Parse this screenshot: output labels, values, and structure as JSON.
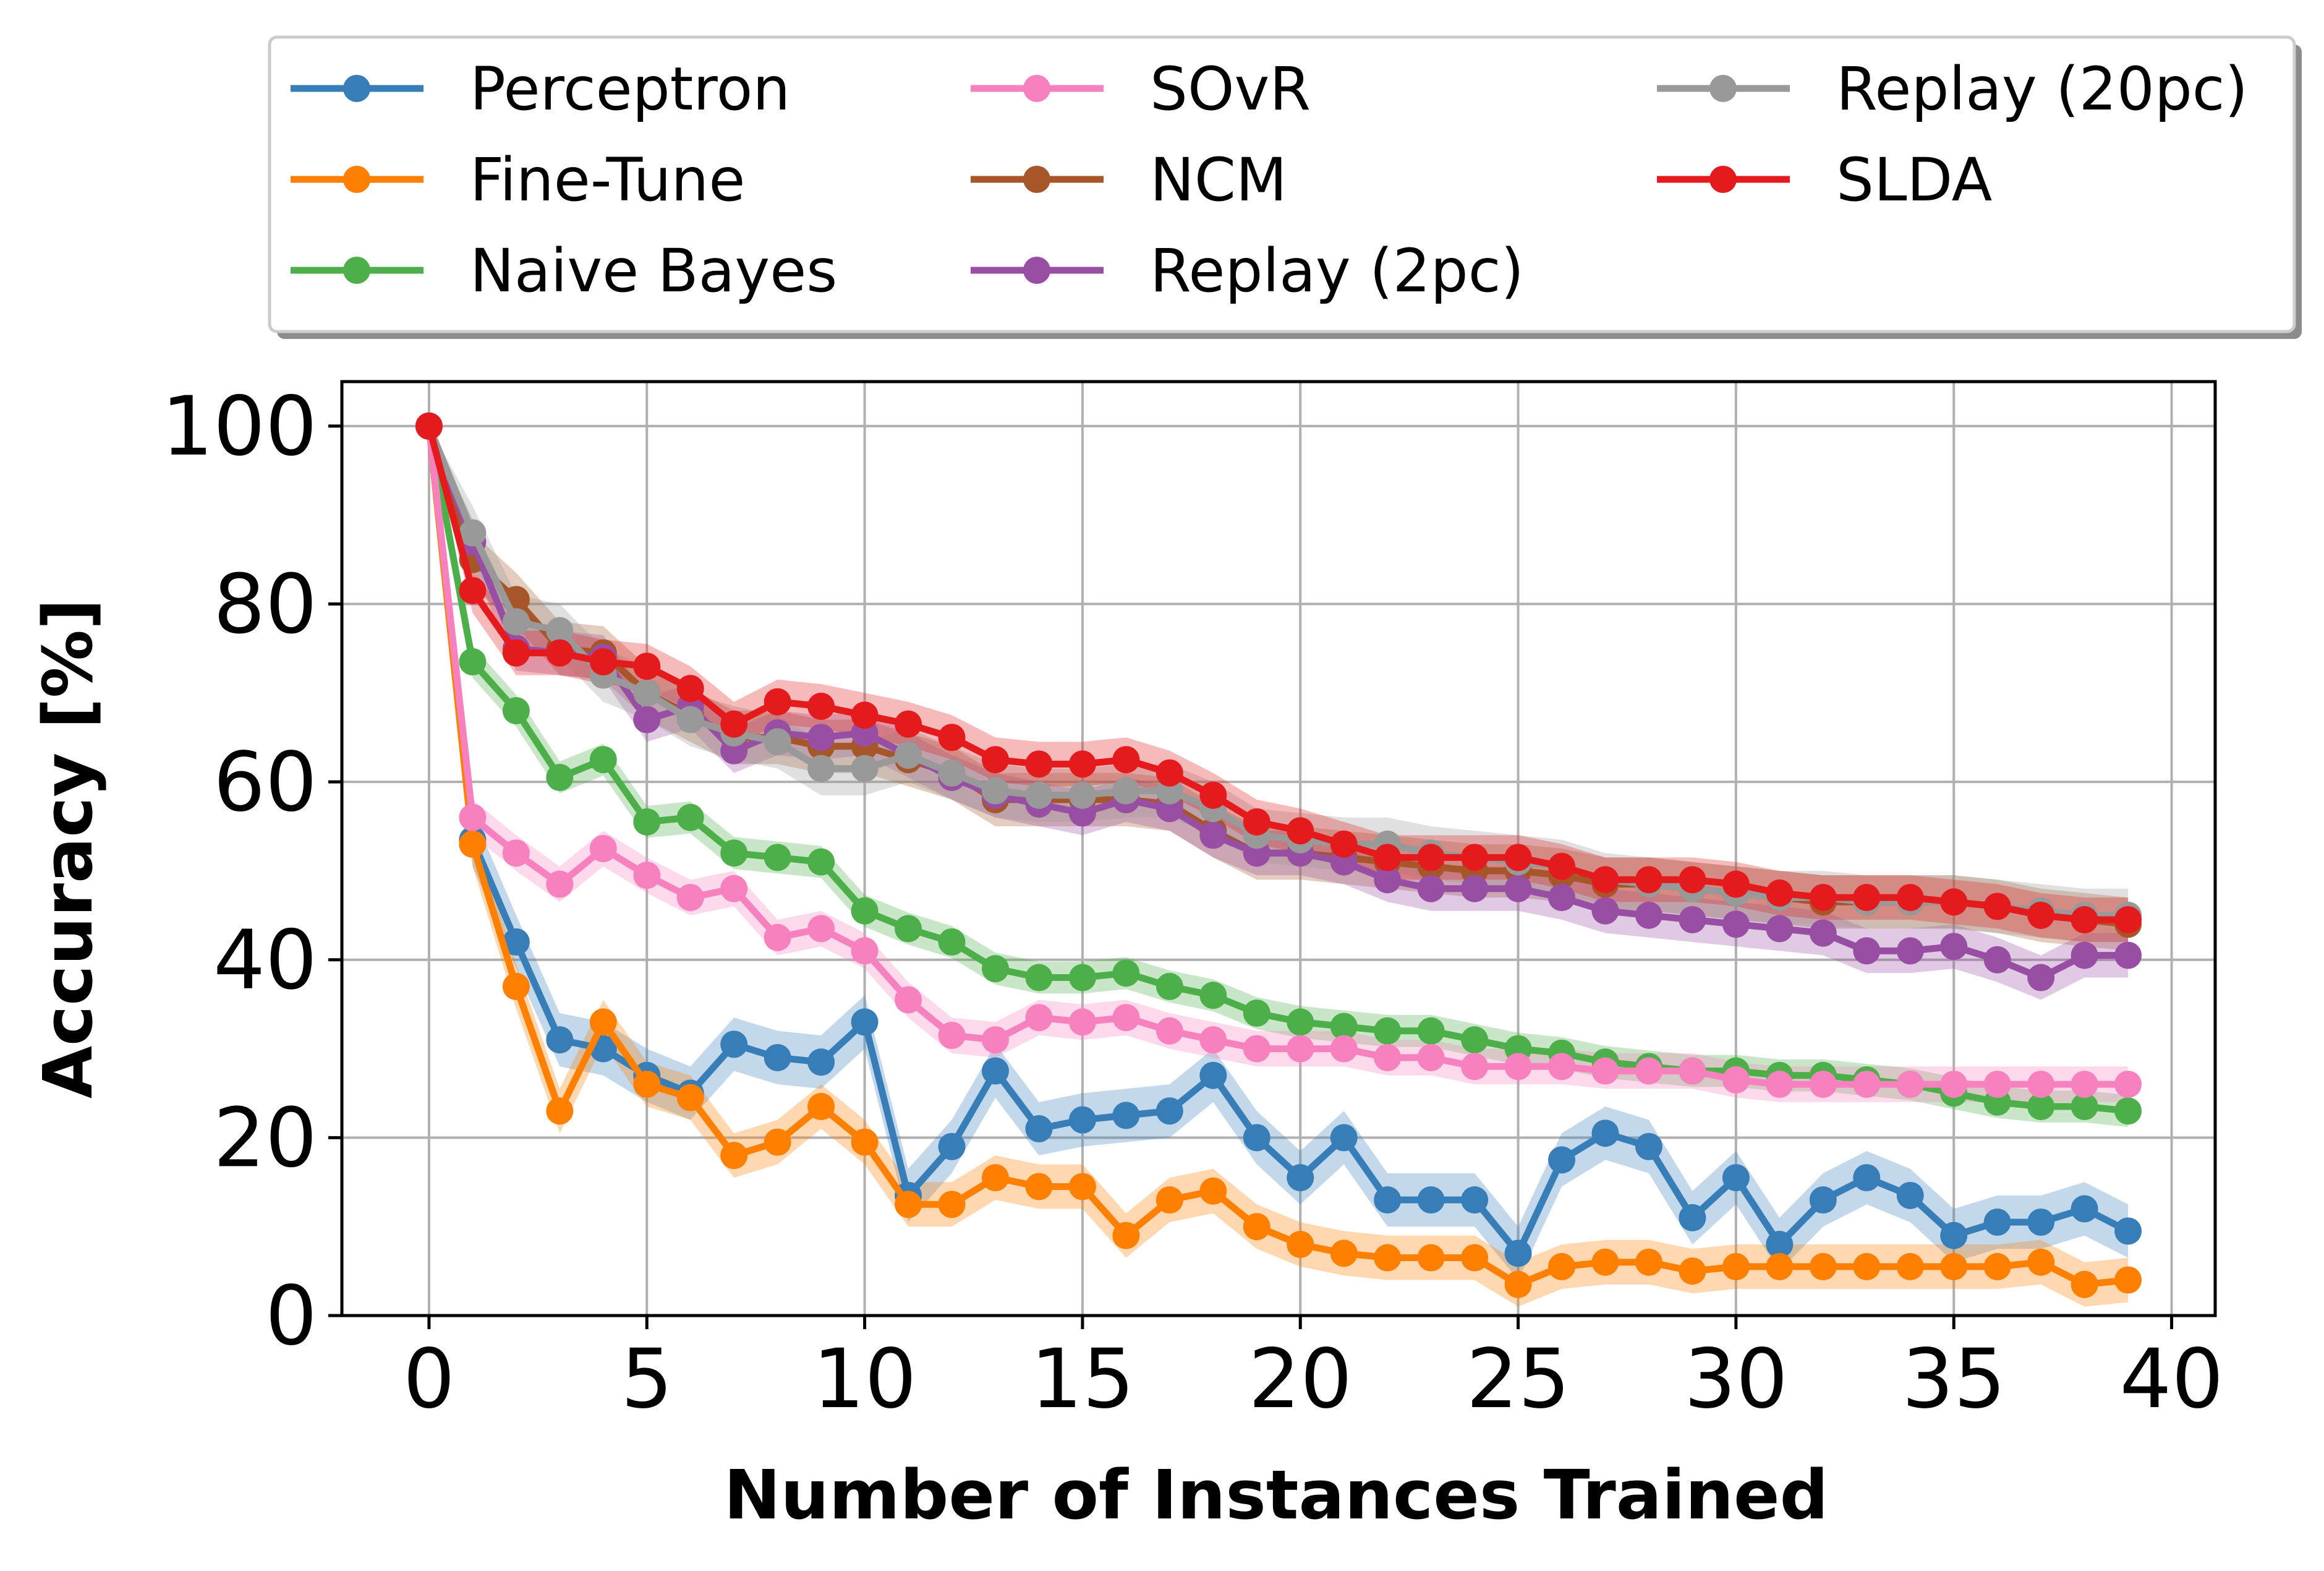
{
  "chart_data": {
    "type": "line",
    "title": "",
    "xlabel": "Number of Instances Trained",
    "ylabel": "Accuracy [%]",
    "xlim": [
      -2,
      41
    ],
    "ylim": [
      0,
      105
    ],
    "xticks": [
      0,
      5,
      10,
      15,
      20,
      25,
      30,
      35,
      40
    ],
    "yticks": [
      0,
      20,
      40,
      60,
      80,
      100
    ],
    "xtick_labels": [
      "0",
      "5",
      "10",
      "15",
      "20",
      "25",
      "30",
      "35",
      "40"
    ],
    "ytick_labels": [
      "0",
      "20",
      "40",
      "60",
      "80",
      "100"
    ],
    "grid": true,
    "legend": "top, above plot, 3 columns",
    "x": [
      0,
      1,
      2,
      3,
      4,
      5,
      6,
      7,
      8,
      9,
      10,
      11,
      12,
      13,
      14,
      15,
      16,
      17,
      18,
      19,
      20,
      21,
      22,
      23,
      24,
      25,
      26,
      27,
      28,
      29,
      30,
      31,
      32,
      33,
      34,
      35,
      36,
      37,
      38,
      39
    ],
    "series": [
      {
        "name": "Perceptron",
        "color": "#377eb8",
        "band": 3,
        "values": [
          100,
          53.5,
          42,
          31,
          30,
          27,
          25,
          30.5,
          29,
          28.5,
          33,
          13.5,
          19,
          27.5,
          21,
          22,
          22.5,
          23,
          27,
          20,
          15.5,
          20,
          13,
          13,
          13,
          7,
          17.5,
          20.5,
          19,
          11,
          15.5,
          8,
          13,
          15.5,
          13.5,
          9,
          10.5,
          10.5,
          12,
          9.5
        ]
      },
      {
        "name": "Fine-Tune",
        "color": "#ff7f00",
        "band": 2.5,
        "values": [
          100,
          53,
          37,
          23,
          33,
          26,
          24.5,
          18,
          19.5,
          23.5,
          19.5,
          12.5,
          12.5,
          15.5,
          14.5,
          14.5,
          9,
          13,
          14,
          10,
          8,
          7,
          6.5,
          6.5,
          6.5,
          3.5,
          5.5,
          6,
          6,
          5,
          5.5,
          5.5,
          5.5,
          5.5,
          5.5,
          5.5,
          5.5,
          6,
          3.5,
          4
        ]
      },
      {
        "name": "Naive Bayes",
        "color": "#4daf4a",
        "band": 1.8,
        "values": [
          100,
          73.5,
          68,
          60.5,
          62.5,
          55.5,
          56,
          52,
          51.5,
          51,
          45.5,
          43.5,
          42,
          39,
          38,
          38,
          38.5,
          37,
          36,
          34,
          33,
          32.5,
          32,
          32,
          31,
          30,
          29.5,
          28.5,
          28,
          27.5,
          27.5,
          27,
          27,
          26.5,
          26,
          25,
          24,
          23.5,
          23.5,
          23
        ]
      },
      {
        "name": "SOvR",
        "color": "#f781bf",
        "band": 2,
        "values": [
          100,
          56,
          52,
          48.5,
          52.5,
          49.5,
          47,
          48,
          42.5,
          43.5,
          41,
          35.5,
          31.5,
          31,
          33.5,
          33,
          33.5,
          32,
          31,
          30,
          30,
          30,
          29,
          29,
          28,
          28,
          28,
          27.5,
          27.5,
          27.5,
          26.5,
          26,
          26,
          26,
          26,
          26,
          26,
          26,
          26,
          26
        ]
      },
      {
        "name": "NCM",
        "color": "#a65628",
        "band": 3,
        "values": [
          100,
          85,
          80.5,
          75,
          74.5,
          70,
          67.5,
          65,
          65,
          64,
          64,
          62.5,
          61,
          58,
          58,
          58,
          58,
          57.5,
          54.5,
          52,
          52,
          51.5,
          51,
          50.5,
          50,
          50,
          49.5,
          48.5,
          48.5,
          48,
          47.5,
          47,
          46.5,
          46.5,
          46.5,
          46.5,
          46,
          45,
          44.5,
          44
        ]
      },
      {
        "name": "Replay (2pc)",
        "color": "#984ea3",
        "band": 2.5,
        "values": [
          100,
          87,
          75,
          74.5,
          74,
          67,
          68.5,
          63.5,
          65.5,
          65,
          65.5,
          63,
          60.5,
          58.5,
          57.5,
          56.5,
          58,
          57,
          54,
          52,
          52,
          51,
          49,
          48,
          48,
          48,
          47,
          45.5,
          45,
          44.5,
          44,
          43.5,
          43,
          41,
          41,
          41.5,
          40,
          38,
          40.5,
          40.5
        ]
      },
      {
        "name": "Replay (20pc)",
        "color": "#999999",
        "band": 3,
        "values": [
          100,
          88,
          78,
          77,
          72,
          70,
          67,
          65.5,
          64.5,
          61.5,
          61.5,
          63,
          61,
          59,
          58.5,
          58.5,
          59,
          59,
          57,
          54,
          53.5,
          53,
          53,
          52,
          51.5,
          51,
          50.5,
          49,
          48.5,
          48,
          47.5,
          47,
          47,
          46.5,
          46.5,
          46.5,
          46,
          45.5,
          45,
          45
        ]
      },
      {
        "name": "SLDA",
        "color": "#e41a1c",
        "band": 2.5,
        "values": [
          100,
          81.5,
          74.5,
          74.5,
          73.5,
          73,
          70.5,
          66.5,
          69,
          68.5,
          67.5,
          66.5,
          65,
          62.5,
          62,
          62,
          62.5,
          61,
          58.5,
          55.5,
          54.5,
          53,
          51.5,
          51.5,
          51.5,
          51.5,
          50.5,
          49,
          49,
          49,
          48.5,
          47.5,
          47,
          47,
          47,
          46.5,
          46,
          45,
          44.5,
          44.5
        ]
      }
    ]
  }
}
